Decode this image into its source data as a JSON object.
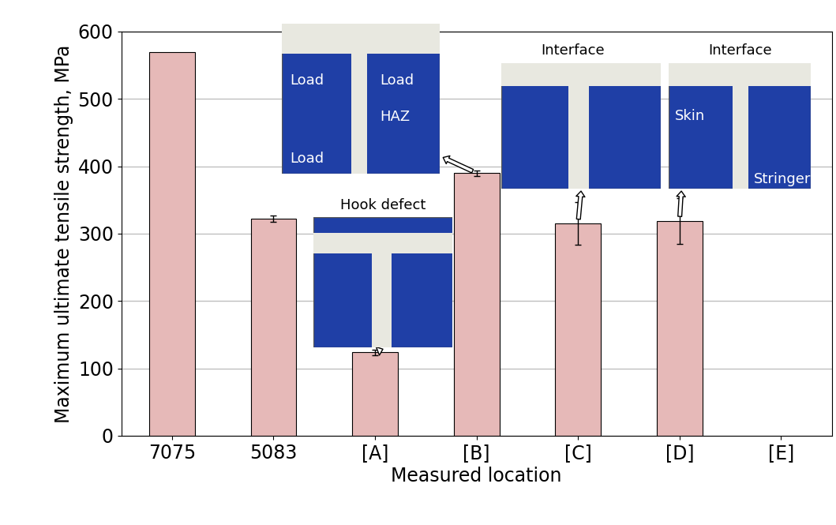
{
  "chart_data": {
    "type": "bar",
    "categories": [
      "7075",
      "5083",
      "[A]",
      "[B]",
      "[C]",
      "[D]",
      "[E]"
    ],
    "values": [
      570,
      322,
      124,
      390,
      315,
      319,
      null
    ],
    "errors": [
      null,
      5,
      4,
      4,
      32,
      34,
      null
    ],
    "color": "#e6b9b8",
    "xlabel": "Measured location",
    "ylabel": "Maximum ultimate tensile strength, MPa",
    "ylim": [
      0,
      600
    ],
    "yticks": [
      0,
      100,
      200,
      300,
      400,
      500,
      600
    ],
    "grid": true,
    "annotations": [
      {
        "category": "[A]",
        "texts": [
          "Hook defect"
        ]
      },
      {
        "category": "[B]",
        "texts": [
          "Load",
          "Load",
          "Load",
          "HAZ"
        ]
      },
      {
        "category": "[C]",
        "texts": [
          "Interface"
        ]
      },
      {
        "category": "[D]",
        "texts": [
          "Interface",
          "Skin",
          "Stringer"
        ]
      }
    ]
  }
}
